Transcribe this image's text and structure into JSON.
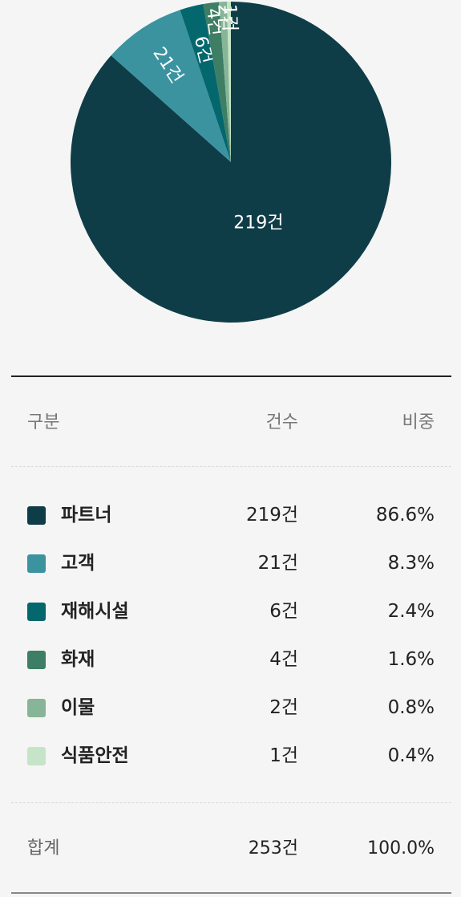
{
  "colors": {
    "background": "#f5f5f5",
    "slice_label": "#ffffff"
  },
  "chart_data": {
    "type": "pie",
    "title": "",
    "unit": "건",
    "slices": [
      {
        "label": "파트너",
        "value": 219,
        "value_label": "219건",
        "share": "86.6%",
        "color": "#0f3d47"
      },
      {
        "label": "고객",
        "value": 21,
        "value_label": "21건",
        "share": "8.3%",
        "color": "#3b93a0"
      },
      {
        "label": "재해시설",
        "value": 6,
        "value_label": "6건",
        "share": "2.4%",
        "color": "#04676e"
      },
      {
        "label": "화재",
        "value": 4,
        "value_label": "4건",
        "share": "1.6%",
        "color": "#3e7e64"
      },
      {
        "label": "이물",
        "value": 2,
        "value_label": "2건",
        "share": "0.8%",
        "color": "#86b597"
      },
      {
        "label": "식품안전",
        "value": 1,
        "value_label": "1건",
        "share": "0.4%",
        "color": "#c6e4c7"
      }
    ]
  },
  "table": {
    "headers": {
      "category": "구분",
      "count": "건수",
      "share": "비중"
    },
    "total": {
      "label": "합계",
      "count": "253건",
      "share": "100.0%"
    }
  }
}
